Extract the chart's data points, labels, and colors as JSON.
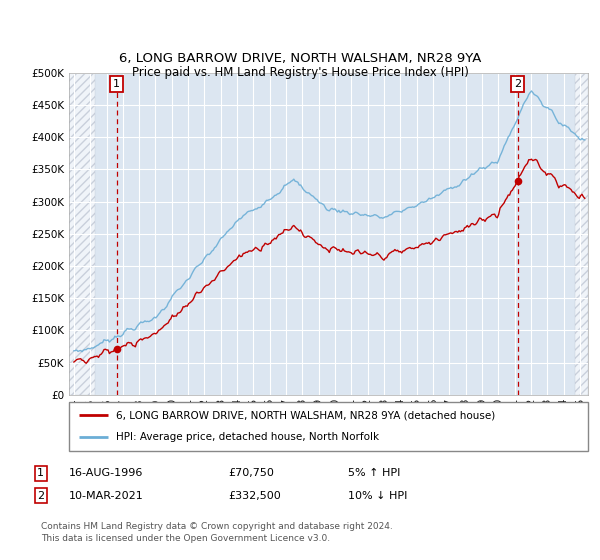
{
  "title_line1": "6, LONG BARROW DRIVE, NORTH WALSHAM, NR28 9YA",
  "title_line2": "Price paid vs. HM Land Registry's House Price Index (HPI)",
  "ylim": [
    0,
    500000
  ],
  "yticks": [
    0,
    50000,
    100000,
    150000,
    200000,
    250000,
    300000,
    350000,
    400000,
    450000,
    500000
  ],
  "ytick_labels": [
    "£0",
    "£50K",
    "£100K",
    "£150K",
    "£200K",
    "£250K",
    "£300K",
    "£350K",
    "£400K",
    "£450K",
    "£500K"
  ],
  "xlim_start": 1993.7,
  "xlim_end": 2025.5,
  "hpi_color": "#6baed6",
  "price_color": "#c00000",
  "sale1_date": 1996.62,
  "sale1_price": 70750,
  "sale2_date": 2021.19,
  "sale2_price": 332500,
  "legend_property": "6, LONG BARROW DRIVE, NORTH WALSHAM, NR28 9YA (detached house)",
  "legend_hpi": "HPI: Average price, detached house, North Norfolk",
  "background_color": "#dce6f1",
  "grid_color": "#ffffff",
  "footer": "Contains HM Land Registry data © Crown copyright and database right 2024.\nThis data is licensed under the Open Government Licence v3.0."
}
